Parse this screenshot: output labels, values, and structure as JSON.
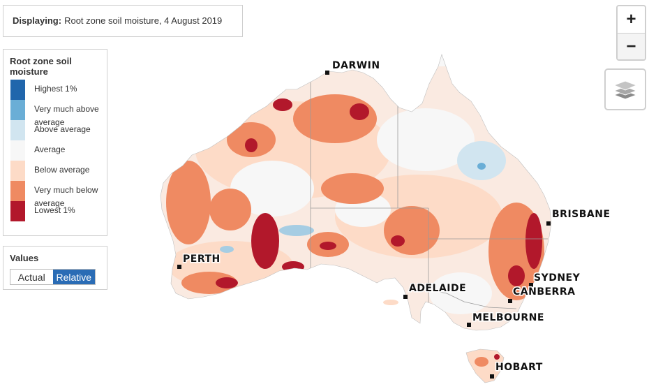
{
  "displaying": {
    "label": "Displaying:",
    "value": "Root zone soil moisture, 4 August 2019"
  },
  "legend": {
    "title": "Root zone soil moisture",
    "items": [
      {
        "label": "Highest 1%",
        "color": "#2166ac"
      },
      {
        "label": "Very much above average",
        "color": "#6aaed6"
      },
      {
        "label": "Above average",
        "color": "#d1e5f0"
      },
      {
        "label": "Average",
        "color": "#f7f7f7"
      },
      {
        "label": "Below average",
        "color": "#fddbc7"
      },
      {
        "label": "Very much below average",
        "color": "#ef8a62"
      },
      {
        "label": "Lowest 1%",
        "color": "#b2182b"
      }
    ]
  },
  "values": {
    "title": "Values",
    "options": [
      "Actual",
      "Relative"
    ],
    "selected": "Relative"
  },
  "zoom": {
    "in_label": "+",
    "out_label": "−"
  },
  "layers": {
    "icon": "layers-icon"
  },
  "cities": [
    {
      "name": "DARWIN"
    },
    {
      "name": "BRISBANE"
    },
    {
      "name": "PERTH"
    },
    {
      "name": "SYDNEY"
    },
    {
      "name": "ADELAIDE"
    },
    {
      "name": "CANBERRA"
    },
    {
      "name": "MELBOURNE"
    },
    {
      "name": "HOBART"
    }
  ]
}
